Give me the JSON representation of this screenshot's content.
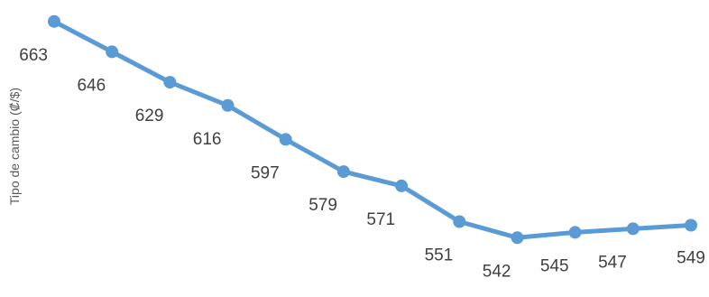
{
  "chart_data": {
    "type": "line",
    "ylabel": "Tipo de cambio (₡/$)",
    "y": [
      663,
      646,
      629,
      616,
      597,
      579,
      571,
      551,
      542,
      545,
      547,
      549
    ],
    "data_labels": [
      "663",
      "646",
      "629",
      "616",
      "597",
      "579",
      "571",
      "551",
      "542",
      "545",
      "547",
      "549"
    ],
    "ylim": [
      530,
      675
    ],
    "grid": false,
    "legend": "none",
    "colors": {
      "line": "#5b9bd5",
      "marker": "#5b9bd5",
      "label_text": "#404040",
      "axis_title_text": "#595959"
    }
  }
}
